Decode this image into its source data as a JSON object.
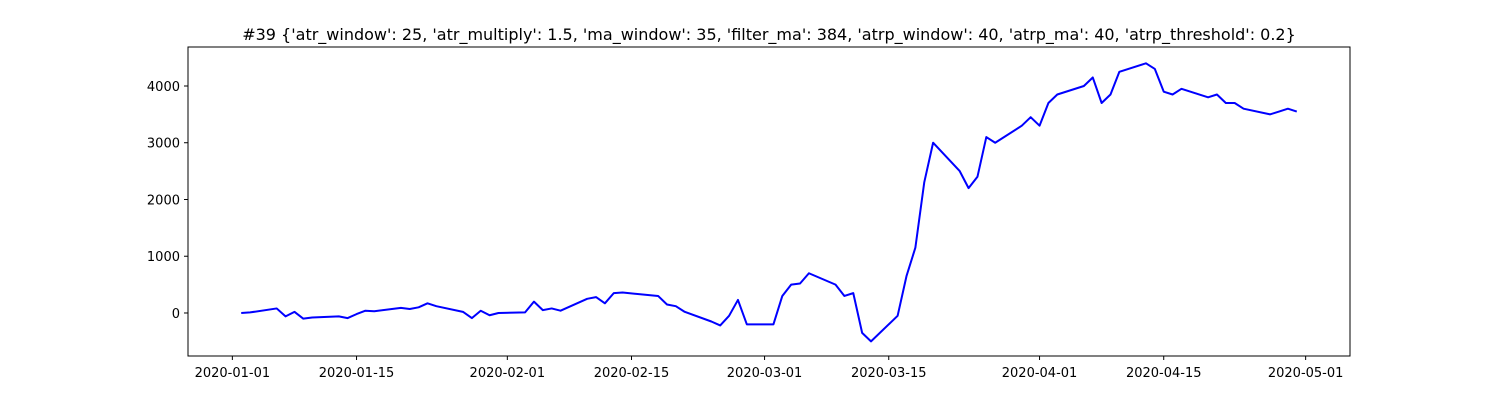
{
  "chart_data": {
    "type": "line",
    "title": "#39 {'atr_window': 25, 'atr_multiply': 1.5, 'ma_window': 35, 'filter_ma': 384, 'atrp_window': 40, 'atrp_ma': 40, 'atrp_threshold': 0.2}",
    "x": [
      "2020-01-02",
      "2020-01-03",
      "2020-01-06",
      "2020-01-07",
      "2020-01-08",
      "2020-01-09",
      "2020-01-10",
      "2020-01-13",
      "2020-01-14",
      "2020-01-15",
      "2020-01-16",
      "2020-01-17",
      "2020-01-20",
      "2020-01-21",
      "2020-01-22",
      "2020-01-23",
      "2020-01-24",
      "2020-01-27",
      "2020-01-28",
      "2020-01-29",
      "2020-01-30",
      "2020-01-31",
      "2020-02-03",
      "2020-02-04",
      "2020-02-05",
      "2020-02-06",
      "2020-02-07",
      "2020-02-10",
      "2020-02-11",
      "2020-02-12",
      "2020-02-13",
      "2020-02-14",
      "2020-02-18",
      "2020-02-19",
      "2020-02-20",
      "2020-02-21",
      "2020-02-24",
      "2020-02-25",
      "2020-02-26",
      "2020-02-27",
      "2020-02-28",
      "2020-03-02",
      "2020-03-03",
      "2020-03-04",
      "2020-03-05",
      "2020-03-06",
      "2020-03-09",
      "2020-03-10",
      "2020-03-11",
      "2020-03-12",
      "2020-03-13",
      "2020-03-16",
      "2020-03-17",
      "2020-03-18",
      "2020-03-19",
      "2020-03-20",
      "2020-03-23",
      "2020-03-24",
      "2020-03-25",
      "2020-03-26",
      "2020-03-27",
      "2020-03-30",
      "2020-03-31",
      "2020-04-01",
      "2020-04-02",
      "2020-04-03",
      "2020-04-06",
      "2020-04-07",
      "2020-04-08",
      "2020-04-09",
      "2020-04-10",
      "2020-04-13",
      "2020-04-14",
      "2020-04-15",
      "2020-04-16",
      "2020-04-17",
      "2020-04-20",
      "2020-04-21",
      "2020-04-22",
      "2020-04-23",
      "2020-04-24",
      "2020-04-27",
      "2020-04-28",
      "2020-04-29",
      "2020-04-30"
    ],
    "series": [
      {
        "color": "#0000ff",
        "values": [
          0,
          10,
          80,
          -60,
          20,
          -100,
          -80,
          -60,
          -90,
          -20,
          40,
          30,
          90,
          70,
          100,
          170,
          120,
          20,
          -90,
          40,
          -40,
          0,
          10,
          200,
          50,
          80,
          40,
          250,
          280,
          170,
          350,
          360,
          300,
          150,
          120,
          20,
          -150,
          -220,
          -50,
          230,
          -200,
          -200,
          300,
          500,
          520,
          700,
          500,
          300,
          350,
          -350,
          -500,
          -50,
          650,
          1150,
          2300,
          3000,
          2500,
          2200,
          2400,
          3100,
          3000,
          3300,
          3450,
          3300,
          3700,
          3850,
          4000,
          4150,
          3700,
          3850,
          4250,
          4400,
          4300,
          3900,
          3850,
          3950,
          3800,
          3850,
          3700,
          3700,
          3600,
          3500,
          3550,
          3600,
          3550
        ]
      }
    ],
    "xlim": [
      "2019-12-27",
      "2020-05-06"
    ],
    "xticks": [
      "2020-01-01",
      "2020-01-15",
      "2020-02-01",
      "2020-02-15",
      "2020-03-01",
      "2020-03-15",
      "2020-04-01",
      "2020-04-15",
      "2020-05-01"
    ],
    "ylim": [
      -758,
      4687
    ],
    "yticks": [
      0,
      1000,
      2000,
      3000,
      4000
    ]
  }
}
